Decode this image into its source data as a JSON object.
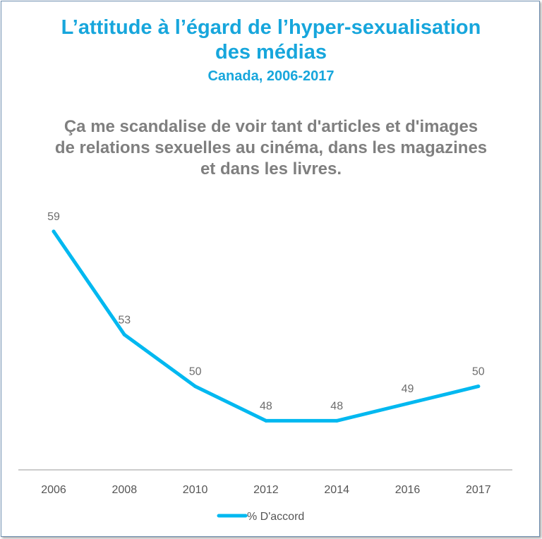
{
  "header": {
    "title_line1": "L’attitude à l’égard de l’hyper-sexualisation",
    "title_line2": "des médias",
    "subtitle": "Canada, 2006-2017"
  },
  "question": {
    "line1": "Ça me scandalise de voir tant d'articles et d'images",
    "line2": "de relations sexuelles au cinéma, dans les magazines",
    "line3": "et dans les livres."
  },
  "colors": {
    "accent": "#17a6dc",
    "line": "#00b8f0",
    "question_text": "#7f7f7f",
    "axis": "#9a9a9a"
  },
  "chart_data": {
    "type": "line",
    "categories": [
      "2006",
      "2008",
      "2010",
      "2012",
      "2014",
      "2016",
      "2017"
    ],
    "series": [
      {
        "name": "% D'accord",
        "values": [
          59,
          53,
          50,
          48,
          48,
          49,
          50
        ]
      }
    ],
    "data_labels": true,
    "ylim": [
      45,
      62
    ],
    "grid": false,
    "legend": "bottom-left",
    "xlabel": "",
    "ylabel": ""
  }
}
